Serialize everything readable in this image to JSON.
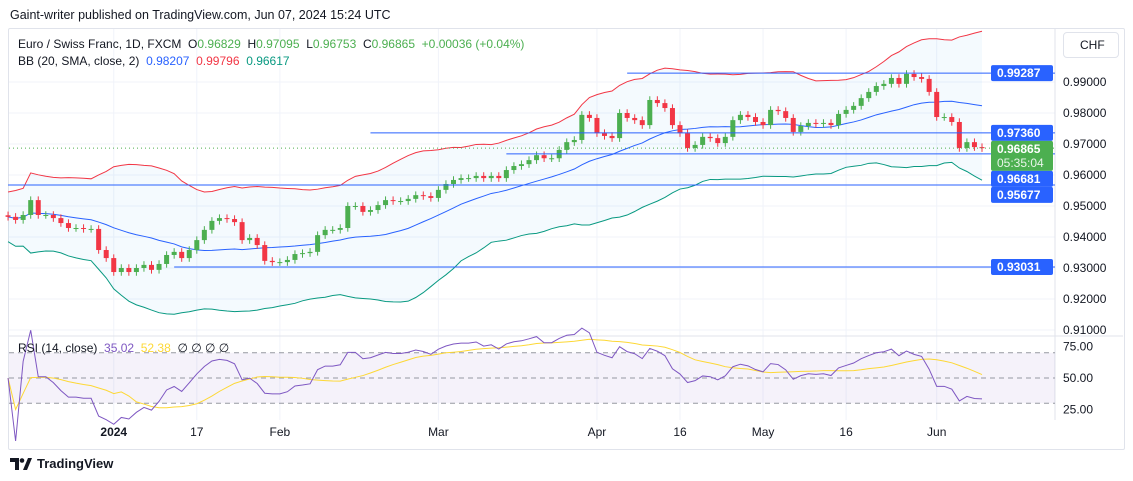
{
  "published": "Gaint-writer published on TradingView.com, Jun 07, 2024 15:24 UTC",
  "legend": {
    "symbol": "Euro / Swiss Franc, 1D, FXCM",
    "o_label": "O",
    "o": "0.96829",
    "h_label": "H",
    "h": "0.97095",
    "l_label": "L",
    "l": "0.96753",
    "c_label": "C",
    "c": "0.96865",
    "change": "+0.00036 (+0.04%)",
    "bb_label": "BB (20, SMA, close, 2)",
    "bb_basis": "0.98207",
    "bb_upper": "0.99796",
    "bb_lower": "0.96617"
  },
  "rsi": {
    "label": "RSI (14, close)",
    "value": "35.02",
    "ma": "52.38",
    "extra": "∅ ∅ ∅ ∅"
  },
  "currency": "CHF",
  "logo": "TradingView",
  "colors": {
    "up": "#4caf50",
    "down": "#f23645",
    "basis": "#2962ff",
    "upper": "#f23645",
    "lower": "#089981",
    "rsi": "#7e57c2",
    "rsi_ma": "#fdd835",
    "hline": "#2962ff"
  },
  "chart_data": {
    "type": "candlestick",
    "price_ticks": [
      "0.99000",
      "0.98000",
      "0.97000",
      "0.96000",
      "0.95000",
      "0.94000",
      "0.93000",
      "0.92000",
      "0.91000"
    ],
    "price_range": [
      0.9063,
      0.9995
    ],
    "rsi_ticks": [
      "75.00",
      "50.00",
      "25.00"
    ],
    "time_labels": [
      {
        "t": "2024",
        "bar": 14
      },
      {
        "t": "17",
        "bar": 25
      },
      {
        "t": "Feb",
        "bar": 36
      },
      {
        "t": "Mar",
        "bar": 57
      },
      {
        "t": "Apr",
        "bar": 78
      },
      {
        "t": "16",
        "bar": 89
      },
      {
        "t": "May",
        "bar": 100
      },
      {
        "t": "16",
        "bar": 111
      },
      {
        "t": "Jun",
        "bar": 123
      }
    ],
    "horizontal_levels": [
      {
        "price": 0.99287,
        "label": "0.99287",
        "from_bar": 82
      },
      {
        "price": 0.9736,
        "label": "0.97360",
        "from_bar": 48
      },
      {
        "price": 0.96681,
        "label": "0.96681",
        "from_bar": 66
      },
      {
        "price": 0.95677,
        "label": "0.95677",
        "from_bar": 0
      },
      {
        "price": 0.93031,
        "label": "0.93031",
        "from_bar": 22
      }
    ],
    "last_price": {
      "label": "0.96865",
      "countdown": "05:35:04"
    },
    "closes": [
      0.9465,
      0.9455,
      0.9471,
      0.9519,
      0.9471,
      0.9471,
      0.9461,
      0.9445,
      0.9429,
      0.9429,
      0.9426,
      0.9426,
      0.9358,
      0.9332,
      0.9287,
      0.93,
      0.9287,
      0.93,
      0.931,
      0.9294,
      0.9313,
      0.9342,
      0.9352,
      0.9332,
      0.9358,
      0.939,
      0.9423,
      0.9452,
      0.9461,
      0.9458,
      0.9448,
      0.939,
      0.9397,
      0.9374,
      0.9323,
      0.9319,
      0.9319,
      0.9326,
      0.9345,
      0.9348,
      0.9352,
      0.9406,
      0.9423,
      0.9423,
      0.9429,
      0.95,
      0.95,
      0.9481,
      0.9487,
      0.9503,
      0.9519,
      0.9516,
      0.9516,
      0.9523,
      0.9535,
      0.9532,
      0.9526,
      0.9552,
      0.9571,
      0.9584,
      0.959,
      0.959,
      0.9597,
      0.959,
      0.9597,
      0.959,
      0.9616,
      0.9629,
      0.9635,
      0.9648,
      0.9664,
      0.9654,
      0.9654,
      0.9681,
      0.9706,
      0.9713,
      0.9794,
      0.9784,
      0.9735,
      0.9726,
      0.9719,
      0.98,
      0.9784,
      0.9777,
      0.9761,
      0.9842,
      0.9832,
      0.9816,
      0.9761,
      0.9735,
      0.9687,
      0.9697,
      0.9723,
      0.9719,
      0.9703,
      0.9723,
      0.9777,
      0.9794,
      0.9787,
      0.9771,
      0.9761,
      0.981,
      0.9806,
      0.9784,
      0.9739,
      0.9758,
      0.9768,
      0.9765,
      0.9768,
      0.9761,
      0.9797,
      0.981,
      0.9823,
      0.9848,
      0.9868,
      0.9887,
      0.9894,
      0.9913,
      0.9894,
      0.9926,
      0.9916,
      0.991,
      0.9868,
      0.9787,
      0.9787,
      0.9771,
      0.9687,
      0.9706,
      0.969,
      0.96865
    ]
  }
}
